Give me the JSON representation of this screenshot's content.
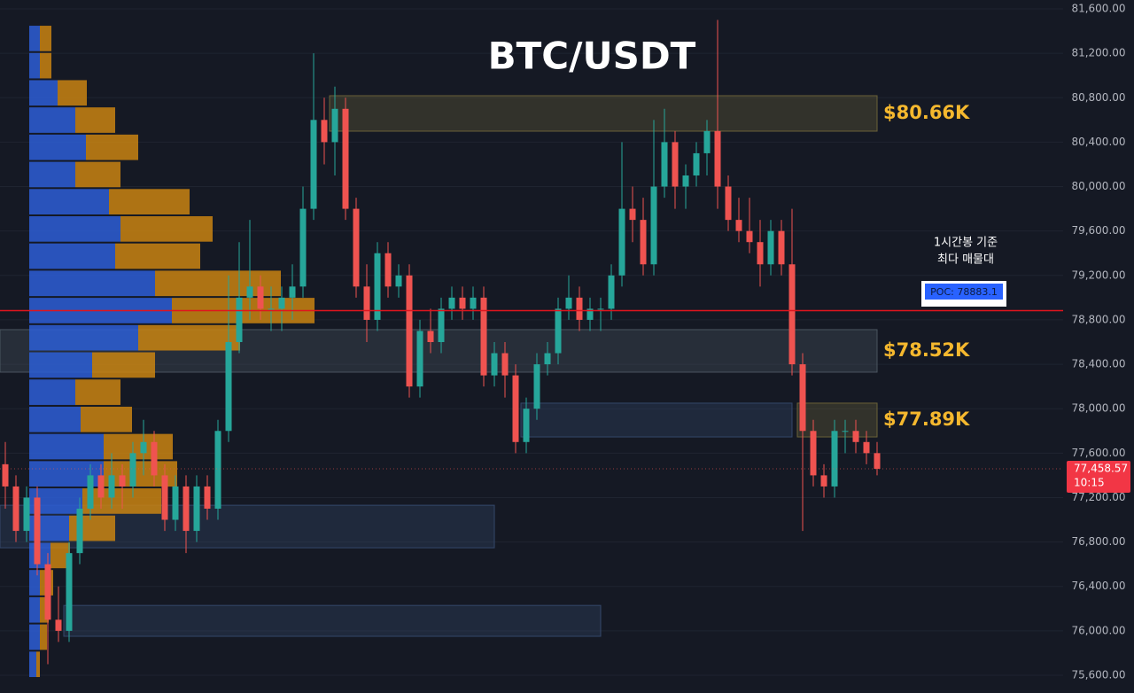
{
  "chart_data": {
    "type": "candlestick",
    "title": "BTC/USDT",
    "ylim": [
      75600,
      81600
    ],
    "yticks": [
      {
        "value": 75600,
        "label": "75,600.00"
      },
      {
        "value": 76000,
        "label": "76,000.00"
      },
      {
        "value": 76400,
        "label": "76,400.00"
      },
      {
        "value": 76800,
        "label": "76,800.00"
      },
      {
        "value": 77200,
        "label": "77,200.00"
      },
      {
        "value": 77600,
        "label": "77,600.00"
      },
      {
        "value": 78000,
        "label": "78,000.00"
      },
      {
        "value": 78400,
        "label": "78,400.00"
      },
      {
        "value": 78800,
        "label": "78,800.00"
      },
      {
        "value": 79200,
        "label": "79,200.00"
      },
      {
        "value": 79600,
        "label": "79,600.00"
      },
      {
        "value": 80000,
        "label": "80,000.00"
      },
      {
        "value": 80400,
        "label": "80,400.00"
      },
      {
        "value": 80800,
        "label": "80,800.00"
      },
      {
        "value": 81200,
        "label": "81,200.00"
      },
      {
        "value": 81600,
        "label": "81,600.00"
      }
    ],
    "grid": true,
    "up_color": "#26a69a",
    "down_color": "#ef5350",
    "candles": [
      [
        77500,
        77700,
        77100,
        77300
      ],
      [
        77300,
        77400,
        76800,
        76900
      ],
      [
        76900,
        77300,
        76800,
        77200
      ],
      [
        77200,
        77300,
        76500,
        76600
      ],
      [
        76600,
        76700,
        75700,
        76100
      ],
      [
        76100,
        76400,
        75900,
        76000
      ],
      [
        76000,
        76800,
        75900,
        76700
      ],
      [
        76700,
        77200,
        76600,
        77100
      ],
      [
        77100,
        77500,
        77000,
        77400
      ],
      [
        77400,
        77500,
        77100,
        77200
      ],
      [
        77200,
        77600,
        77100,
        77400
      ],
      [
        77400,
        77500,
        77100,
        77300
      ],
      [
        77300,
        77700,
        77200,
        77600
      ],
      [
        77600,
        77900,
        77400,
        77700
      ],
      [
        77700,
        77800,
        77300,
        77400
      ],
      [
        77400,
        77500,
        76900,
        77000
      ],
      [
        77000,
        77400,
        76900,
        77300
      ],
      [
        77300,
        77400,
        76700,
        76900
      ],
      [
        76900,
        77400,
        76800,
        77300
      ],
      [
        77300,
        77400,
        77000,
        77100
      ],
      [
        77100,
        77900,
        77000,
        77800
      ],
      [
        77800,
        79200,
        77700,
        78600
      ],
      [
        78600,
        79500,
        78500,
        79000
      ],
      [
        79000,
        79700,
        78800,
        79100
      ],
      [
        79100,
        79200,
        78800,
        78900
      ],
      [
        78900,
        79100,
        78700,
        78900
      ],
      [
        78900,
        79100,
        78700,
        79000
      ],
      [
        79000,
        79300,
        78800,
        79100
      ],
      [
        79100,
        80000,
        79000,
        79800
      ],
      [
        79800,
        81200,
        79700,
        80600
      ],
      [
        80600,
        80800,
        80200,
        80400
      ],
      [
        80400,
        80900,
        80100,
        80700
      ],
      [
        80700,
        80800,
        79700,
        79800
      ],
      [
        79800,
        79900,
        79000,
        79100
      ],
      [
        79100,
        79300,
        78600,
        78800
      ],
      [
        78800,
        79500,
        78700,
        79400
      ],
      [
        79400,
        79500,
        79000,
        79100
      ],
      [
        79100,
        79300,
        79000,
        79200
      ],
      [
        79200,
        79300,
        78100,
        78200
      ],
      [
        78200,
        78800,
        78100,
        78700
      ],
      [
        78700,
        78900,
        78500,
        78600
      ],
      [
        78600,
        79000,
        78500,
        78900
      ],
      [
        78900,
        79100,
        78800,
        79000
      ],
      [
        79000,
        79100,
        78800,
        78900
      ],
      [
        78900,
        79100,
        78800,
        79000
      ],
      [
        79000,
        79100,
        78200,
        78300
      ],
      [
        78300,
        78600,
        78200,
        78500
      ],
      [
        78500,
        78600,
        78100,
        78300
      ],
      [
        78300,
        78400,
        77600,
        77700
      ],
      [
        77700,
        78100,
        77600,
        78000
      ],
      [
        78000,
        78500,
        77900,
        78400
      ],
      [
        78400,
        78600,
        78300,
        78500
      ],
      [
        78500,
        79000,
        78400,
        78900
      ],
      [
        78900,
        79200,
        78800,
        79000
      ],
      [
        79000,
        79100,
        78700,
        78800
      ],
      [
        78800,
        79000,
        78700,
        78900
      ],
      [
        78900,
        79000,
        78700,
        78900
      ],
      [
        78900,
        79300,
        78800,
        79200
      ],
      [
        79200,
        80400,
        79100,
        79800
      ],
      [
        79800,
        80000,
        79500,
        79700
      ],
      [
        79700,
        79900,
        79200,
        79300
      ],
      [
        79300,
        80600,
        79200,
        80000
      ],
      [
        80000,
        80700,
        79900,
        80400
      ],
      [
        80400,
        80500,
        79800,
        80000
      ],
      [
        80000,
        80200,
        79800,
        80100
      ],
      [
        80100,
        80400,
        80000,
        80300
      ],
      [
        80300,
        80600,
        80100,
        80500
      ],
      [
        80500,
        81500,
        79800,
        80000
      ],
      [
        80000,
        80100,
        79600,
        79700
      ],
      [
        79700,
        79900,
        79500,
        79600
      ],
      [
        79600,
        79900,
        79400,
        79500
      ],
      [
        79500,
        79700,
        79100,
        79300
      ],
      [
        79300,
        79700,
        79200,
        79600
      ],
      [
        79600,
        79700,
        79200,
        79300
      ],
      [
        79300,
        79800,
        78300,
        78400
      ],
      [
        78400,
        78500,
        76900,
        77800
      ],
      [
        77800,
        77900,
        77300,
        77400
      ],
      [
        77400,
        77500,
        77200,
        77300
      ],
      [
        77300,
        77900,
        77200,
        77800
      ],
      [
        77800,
        77900,
        77600,
        77800
      ],
      [
        77800,
        77900,
        77600,
        77700
      ],
      [
        77700,
        77800,
        77500,
        77600
      ],
      [
        77600,
        77700,
        77400,
        77458.57
      ]
    ],
    "volume_profile": {
      "bins": [
        81456,
        81211,
        80966,
        80721,
        80476,
        80231,
        79986,
        79741,
        79496,
        79251,
        79006,
        78761,
        78516,
        78271,
        78026,
        77781,
        77536,
        77291,
        77046,
        76801,
        76556,
        76311,
        76066,
        75821,
        75576
      ],
      "buy": [
        12,
        12,
        32,
        52,
        64,
        52,
        90,
        103,
        97,
        142,
        161,
        123,
        71,
        52,
        58,
        84,
        84,
        60,
        45,
        24,
        12,
        12,
        12,
        8
      ],
      "sell": [
        13,
        13,
        33,
        45,
        59,
        51,
        91,
        104,
        96,
        142,
        161,
        115,
        71,
        51,
        58,
        78,
        83,
        89,
        52,
        22,
        15,
        10,
        8,
        4
      ],
      "buy_color": "#2d5ed6",
      "sell_color": "#c98412"
    },
    "zones": [
      {
        "top": 80818,
        "bottom": 80499,
        "start": 31,
        "end": 82,
        "color": "#6b6238",
        "label": "$80.66K"
      },
      {
        "top": 78712,
        "bottom": 78329,
        "start": 0,
        "end": 82,
        "color": "#4a5560",
        "label": "$78.52K"
      },
      {
        "top": 78050,
        "bottom": 77746,
        "start": 49,
        "end": 74,
        "color": "#34486a"
      },
      {
        "top": 78050,
        "bottom": 77746,
        "start": 75,
        "end": 82,
        "color": "#6b6238",
        "label": "$77.89K"
      },
      {
        "top": 77131,
        "bottom": 76748,
        "start": 0,
        "end": 46,
        "color": "#34486a"
      },
      {
        "top": 76229,
        "bottom": 75951,
        "start": 6,
        "end": 56,
        "color": "#34486a"
      }
    ],
    "poc": {
      "value": 78883.1,
      "label": "POC: 78883.1",
      "color": "#e0141e"
    },
    "annotation": [
      "1시간봉 기준",
      "최다 매물대"
    ],
    "last_price": {
      "value": 77458.57,
      "label": "77,458.57"
    },
    "countdown": "10:15"
  }
}
